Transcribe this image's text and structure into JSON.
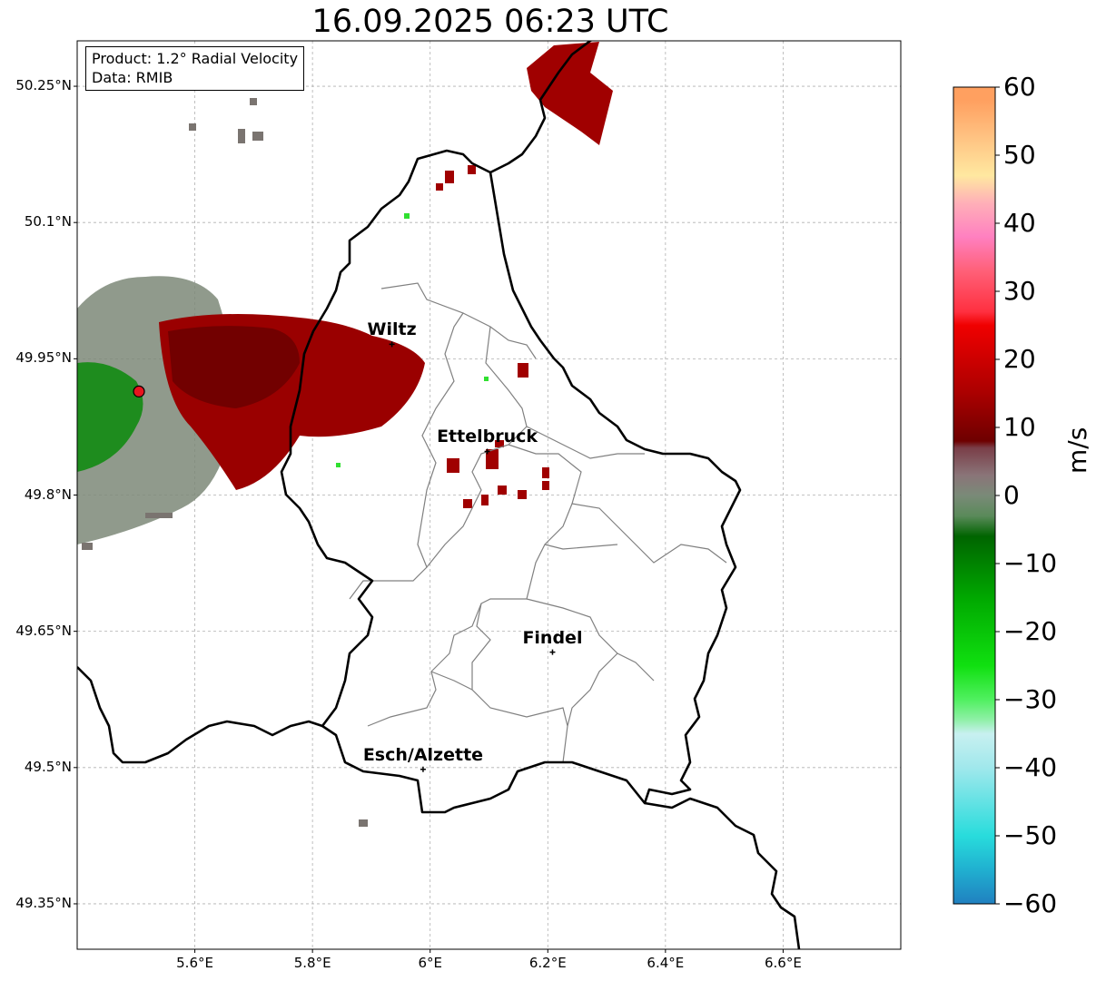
{
  "title": "16.09.2025 06:23 UTC",
  "info": {
    "product": "Product: 1.2° Radial Velocity",
    "data_source": "Data: RMIB"
  },
  "map": {
    "lon_range": [
      5.4,
      6.8
    ],
    "lat_range": [
      49.3,
      50.3
    ],
    "lat_ticks": [
      {
        "value": 50.25,
        "label": "50.25°N"
      },
      {
        "value": 50.1,
        "label": "50.1°N"
      },
      {
        "value": 49.95,
        "label": "49.95°N"
      },
      {
        "value": 49.8,
        "label": "49.8°N"
      },
      {
        "value": 49.65,
        "label": "49.65°N"
      },
      {
        "value": 49.5,
        "label": "49.5°N"
      },
      {
        "value": 49.35,
        "label": "49.35°N"
      }
    ],
    "lon_ticks": [
      {
        "value": 5.6,
        "label": "5.6°E"
      },
      {
        "value": 5.8,
        "label": "5.8°E"
      },
      {
        "value": 6.0,
        "label": "6°E"
      },
      {
        "value": 6.2,
        "label": "6.2°E"
      },
      {
        "value": 6.4,
        "label": "6.4°E"
      },
      {
        "value": 6.6,
        "label": "6.6°E"
      }
    ],
    "radar_site": {
      "lon": 5.505,
      "lat": 49.914,
      "color": "#e8141e"
    },
    "cities": [
      {
        "name": "Wiltz",
        "lon": 5.935,
        "lat": 49.966
      },
      {
        "name": "Ettelbruck",
        "lon": 6.097,
        "lat": 49.848
      },
      {
        "name": "Findel",
        "lon": 6.208,
        "lat": 49.627
      },
      {
        "name": "Esch/Alzette",
        "lon": 5.988,
        "lat": 49.498
      }
    ]
  },
  "colorbar": {
    "label": "m/s",
    "range": [
      -60,
      60
    ],
    "ticks": [
      {
        "value": 60,
        "label": "60"
      },
      {
        "value": 50,
        "label": "50"
      },
      {
        "value": 40,
        "label": "40"
      },
      {
        "value": 30,
        "label": "30"
      },
      {
        "value": 20,
        "label": "20"
      },
      {
        "value": 10,
        "label": "10"
      },
      {
        "value": 0,
        "label": "0"
      },
      {
        "value": -10,
        "label": "−10"
      },
      {
        "value": -20,
        "label": "−20"
      },
      {
        "value": -30,
        "label": "−30"
      },
      {
        "value": -40,
        "label": "−40"
      },
      {
        "value": -50,
        "label": "−50"
      },
      {
        "value": -60,
        "label": "−60"
      }
    ],
    "color_stops": [
      {
        "value": -60,
        "color": "#2080c0"
      },
      {
        "value": -55,
        "color": "#20b0d0"
      },
      {
        "value": -50,
        "color": "#28dcdc"
      },
      {
        "value": -40,
        "color": "#a0e8ec"
      },
      {
        "value": -35,
        "color": "#c8f0f0"
      },
      {
        "value": -33,
        "color": "#90f0a8"
      },
      {
        "value": -30,
        "color": "#50f060"
      },
      {
        "value": -25,
        "color": "#10e010"
      },
      {
        "value": -15,
        "color": "#00a800"
      },
      {
        "value": -6,
        "color": "#006400"
      },
      {
        "value": -3,
        "color": "#5a8a5a"
      },
      {
        "value": 0,
        "color": "#7a8a78"
      },
      {
        "value": 3,
        "color": "#8a7478"
      },
      {
        "value": 7,
        "color": "#7a3e48"
      },
      {
        "value": 8,
        "color": "#6e0000"
      },
      {
        "value": 15,
        "color": "#aa0000"
      },
      {
        "value": 25,
        "color": "#f00000"
      },
      {
        "value": 27,
        "color": "#ff3040"
      },
      {
        "value": 33,
        "color": "#ff6078"
      },
      {
        "value": 38,
        "color": "#ff80c0"
      },
      {
        "value": 43,
        "color": "#ffb0b8"
      },
      {
        "value": 47,
        "color": "#ffe8a0"
      },
      {
        "value": 53,
        "color": "#ffc080"
      },
      {
        "value": 58,
        "color": "#ffa060"
      }
    ]
  }
}
